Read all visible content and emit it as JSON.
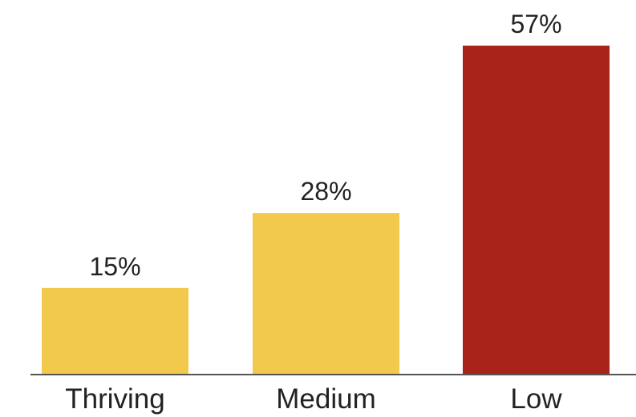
{
  "chart_data": {
    "type": "bar",
    "categories": [
      "Thriving",
      "Medium",
      "Low"
    ],
    "values": [
      15,
      28,
      57
    ],
    "value_labels": [
      "15%",
      "28%",
      "57%"
    ],
    "unit": "%",
    "colors": [
      "#F2C94C",
      "#F2C94C",
      "#A92318"
    ],
    "baseline_color": "#555555",
    "title": "",
    "xlabel": "",
    "ylabel": "",
    "ylim": [
      0,
      57
    ],
    "grid": false,
    "legend": "none"
  }
}
